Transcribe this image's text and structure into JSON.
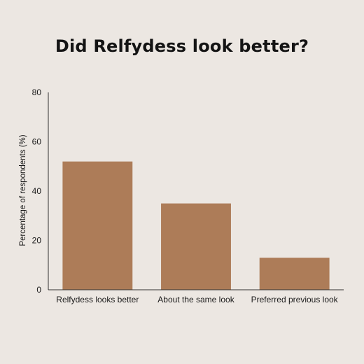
{
  "chart_data": {
    "type": "bar",
    "title": "Did Relfydess look better?",
    "xlabel": "",
    "ylabel": "Percentage of respondents (%)",
    "categories": [
      "Relfydess looks better",
      "About the same look",
      "Preferred previous look"
    ],
    "values": [
      52,
      35,
      13
    ],
    "ylim": [
      0,
      80
    ],
    "yticks": [
      0,
      20,
      40,
      60,
      80
    ],
    "bar_color": "#ad7c58",
    "axis_color": "#333333",
    "grid": false,
    "legend": "none"
  },
  "colors": {
    "background": "#ece7e2",
    "text": "#141414"
  }
}
